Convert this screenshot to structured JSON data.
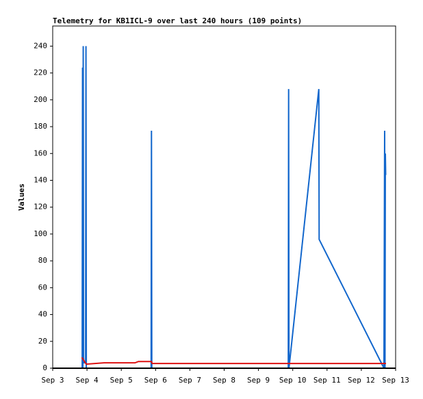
{
  "chart_data": {
    "type": "line",
    "title": "Telemetry for KB1ICL-9 over last 240 hours (109 points)",
    "y_label": "Values",
    "xlim": [
      3,
      13
    ],
    "xticks": [
      {
        "value": 3,
        "label": "Sep 3"
      },
      {
        "value": 4,
        "label": "Sep 4"
      },
      {
        "value": 5,
        "label": "Sep 5"
      },
      {
        "value": 6,
        "label": "Sep 6"
      },
      {
        "value": 7,
        "label": "Sep 7"
      },
      {
        "value": 8,
        "label": "Sep 8"
      },
      {
        "value": 9,
        "label": "Sep 9"
      },
      {
        "value": 10,
        "label": "Sep 10"
      },
      {
        "value": 11,
        "label": "Sep 11"
      },
      {
        "value": 12,
        "label": "Sep 12"
      },
      {
        "value": 13,
        "label": "Sep 13"
      }
    ],
    "ylim": [
      0,
      255
    ],
    "yticks": [
      0,
      20,
      40,
      60,
      80,
      100,
      120,
      140,
      160,
      180,
      200,
      220,
      240
    ],
    "series": [
      {
        "color": "#1166cc",
        "x": [
          3.86,
          3.87,
          3.88,
          3.89,
          3.9,
          3.91,
          3.96,
          3.97,
          3.98,
          5.87,
          5.88,
          5.89,
          9.87,
          9.88,
          9.89,
          10.76,
          10.77,
          12.66,
          12.68,
          12.69,
          12.7,
          12.71
        ],
        "values": [
          0,
          224,
          0,
          240,
          8,
          4,
          4,
          240,
          0,
          0,
          177,
          0,
          0,
          208,
          0,
          208,
          96,
          0,
          177,
          0,
          160,
          144
        ]
      },
      {
        "color": "#dd1111",
        "x": [
          3.85,
          3.98,
          4.5,
          5.4,
          5.5,
          5.88,
          5.9,
          12.72
        ],
        "values": [
          8,
          3,
          4,
          4,
          5,
          5,
          3.5,
          3.5
        ]
      }
    ]
  }
}
